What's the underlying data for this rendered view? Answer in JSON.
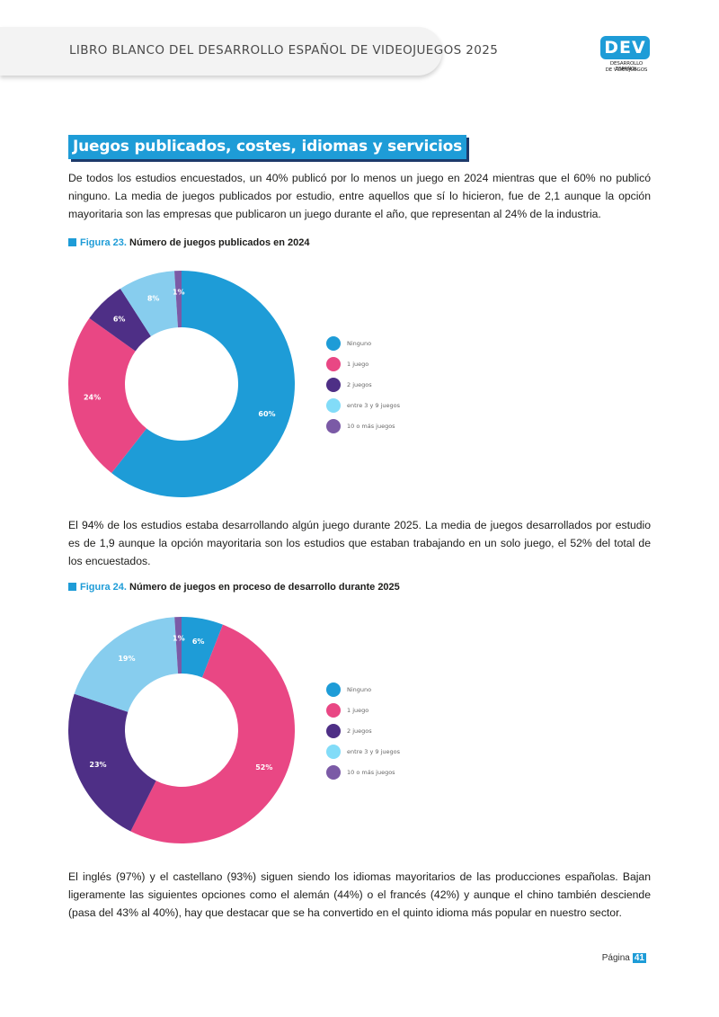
{
  "header": {
    "title": "LIBRO BLANCO DEL DESARROLLO ESPAÑOL DE VIDEOJUEGOS 2025",
    "logo_text": "DEV",
    "logo_sub1": "DESARROLLO ESPAÑOL",
    "logo_sub2": "DE VIDEOJUEGOS"
  },
  "section_title": "Juegos publicados, costes, idiomas y servicios",
  "paragraphs": [
    "De todos los estudios encuestados, un 40% publicó por lo menos un juego en 2024 mientras que el 60% no publicó ninguno. La media de juegos publicados por estudio, entre aquellos que sí lo hicieron, fue de 2,1 aunque la opción mayoritaria son las empresas que publicaron un juego durante el año, que representan al 24% de la industria.",
    "El 94% de los estudios estaba desarrollando algún juego durante 2025. La media de juegos desarrollados por estudio es de 1,9 aunque la opción mayoritaria son los estudios que estaban trabajando en un solo juego, el 52% del total de los encuestados.",
    "El inglés (97%) y el castellano (93%) siguen siendo los idiomas mayoritarios de las producciones españolas. Bajan ligeramente las siguientes opciones como el alemán (44%) o el francés (42%) y aunque el chino también desciende (pasa del 43% al 40%), hay que destacar que se ha convertido en el quinto idioma más popular en nuestro sector."
  ],
  "figures": [
    {
      "number": "Figura 23.",
      "title": "Número de juegos publicados en 2024"
    },
    {
      "number": "Figura 24.",
      "title": "Número de juegos en proceso de desarrollo durante 2025"
    }
  ],
  "chart_data": [
    {
      "type": "pie",
      "title": "Número de juegos publicados en 2024",
      "categories": [
        "Ninguno",
        "1 juego",
        "2 juegos",
        "entre 3 y 9 juegos",
        "10 o más juegos"
      ],
      "values": [
        60,
        24,
        6,
        8,
        1
      ],
      "value_labels": [
        "60%",
        "24%",
        "6%",
        "8%",
        "1%"
      ],
      "colors": [
        "#1e9cd7",
        "#e94784",
        "#4e2f86",
        "#87cdee",
        "#7b5aa6"
      ],
      "legend_colors": [
        "#1e9cd7",
        "#e94784",
        "#4e2f86",
        "#82dcf8",
        "#7b5aa6"
      ],
      "legend_position": "right"
    },
    {
      "type": "pie",
      "title": "Número de juegos en proceso de desarrollo durante 2025",
      "categories": [
        "Ninguno",
        "1 juego",
        "2 juegos",
        "entre 3 y 9 juegos",
        "10 o más juegos"
      ],
      "values": [
        6,
        52,
        23,
        19,
        1
      ],
      "value_labels": [
        "6%",
        "52%",
        "23%",
        "19%",
        "1%"
      ],
      "colors": [
        "#1e9cd7",
        "#e94784",
        "#4e2f86",
        "#87cdee",
        "#7b5aa6"
      ],
      "legend_colors": [
        "#1e9cd7",
        "#e94784",
        "#4e2f86",
        "#82dcf8",
        "#7b5aa6"
      ],
      "legend_position": "right"
    }
  ],
  "footer": {
    "label": "Página",
    "page_number": "41"
  }
}
